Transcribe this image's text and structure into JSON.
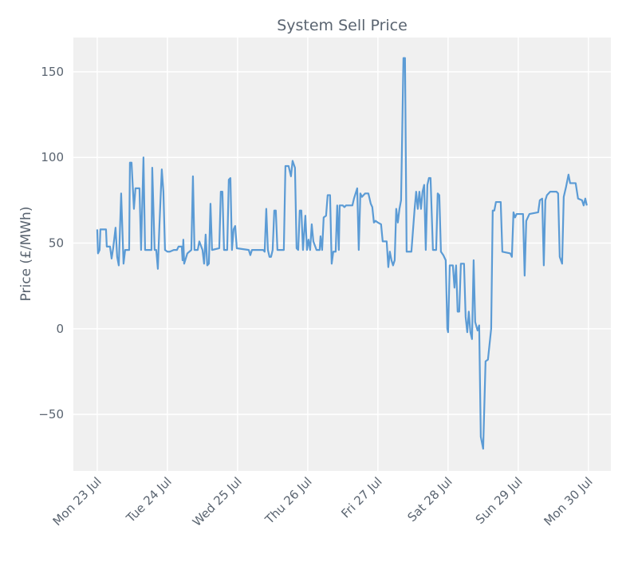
{
  "chart_data": {
    "type": "line",
    "title": "System Sell Price",
    "y_label": "Price (£/MWh)",
    "color": "#5b9bd5",
    "grid": true,
    "xlim": [
      -0.34,
      7.32
    ],
    "ylim": [
      -83,
      170
    ],
    "xticks": [
      {
        "value": 0,
        "label": "Mon 23 Jul"
      },
      {
        "value": 1,
        "label": "Tue 24 Jul"
      },
      {
        "value": 2,
        "label": "Wed 25 Jul"
      },
      {
        "value": 3,
        "label": "Thu 26 Jul"
      },
      {
        "value": 4,
        "label": "Fri 27 Jul"
      },
      {
        "value": 5,
        "label": "Sat 28 Jul"
      },
      {
        "value": 6,
        "label": "Sun 29 Jul"
      },
      {
        "value": 7,
        "label": "Mon 30 Jul"
      }
    ],
    "yticks": [
      {
        "value": -50,
        "label": "−50"
      },
      0,
      50,
      100,
      150
    ],
    "x": [
      0,
      0.011,
      0.034,
      0.045,
      0.125,
      0.136,
      0.182,
      0.205,
      0.227,
      0.261,
      0.284,
      0.307,
      0.341,
      0.375,
      0.398,
      0.455,
      0.466,
      0.489,
      0.523,
      0.545,
      0.602,
      0.625,
      0.659,
      0.682,
      0.773,
      0.784,
      0.818,
      0.841,
      0.864,
      0.886,
      0.92,
      0.943,
      0.966,
      1,
      1.034,
      1.091,
      1.136,
      1.159,
      1.205,
      1.216,
      1.227,
      1.239,
      1.284,
      1.341,
      1.364,
      1.386,
      1.432,
      1.455,
      1.5,
      1.523,
      1.545,
      1.568,
      1.591,
      1.614,
      1.636,
      1.739,
      1.761,
      1.784,
      1.807,
      1.852,
      1.875,
      1.898,
      1.92,
      1.943,
      1.966,
      1.989,
      2.159,
      2.182,
      2.205,
      2.364,
      2.386,
      2.409,
      2.432,
      2.455,
      2.477,
      2.5,
      2.523,
      2.545,
      2.568,
      2.659,
      2.682,
      2.727,
      2.761,
      2.784,
      2.818,
      2.841,
      2.864,
      2.886,
      2.909,
      2.932,
      2.966,
      2.989,
      3.011,
      3.034,
      3.057,
      3.08,
      3.125,
      3.17,
      3.182,
      3.205,
      3.227,
      3.261,
      3.284,
      3.318,
      3.341,
      3.364,
      3.398,
      3.42,
      3.443,
      3.455,
      3.5,
      3.523,
      3.545,
      3.614,
      3.636,
      3.659,
      3.705,
      3.727,
      3.75,
      3.773,
      3.795,
      3.818,
      3.864,
      3.898,
      3.92,
      3.943,
      3.966,
      4.0,
      4.045,
      4.068,
      4.125,
      4.148,
      4.17,
      4.193,
      4.216,
      4.239,
      4.261,
      4.284,
      4.307,
      4.33,
      4.364,
      4.386,
      4.409,
      4.477,
      4.523,
      4.545,
      4.568,
      4.591,
      4.614,
      4.636,
      4.659,
      4.682,
      4.705,
      4.727,
      4.75,
      4.784,
      4.83,
      4.852,
      4.875,
      4.898,
      4.932,
      4.966,
      4.989,
      5.0,
      5.023,
      5.068,
      5.091,
      5.114,
      5.136,
      5.159,
      5.182,
      5.227,
      5.25,
      5.273,
      5.295,
      5.318,
      5.341,
      5.364,
      5.386,
      5.42,
      5.443,
      5.466,
      5.5,
      5.534,
      5.568,
      5.614,
      5.636,
      5.659,
      5.682,
      5.75,
      5.773,
      5.886,
      5.909,
      5.932,
      5.955,
      5.977,
      6.068,
      6.091,
      6.114,
      6.159,
      6.284,
      6.307,
      6.341,
      6.364,
      6.386,
      6.409,
      6.455,
      6.545,
      6.568,
      6.591,
      6.625,
      6.648,
      6.682,
      6.716,
      6.739,
      6.818,
      6.852,
      6.909,
      6.932,
      6.955,
      6.977
    ],
    "values": [
      58,
      44,
      46,
      58,
      58,
      48,
      48,
      41,
      47,
      59,
      42,
      37,
      79,
      38,
      46,
      46,
      97,
      97,
      70,
      82,
      82,
      46,
      100,
      46,
      46,
      94,
      46,
      46,
      35,
      60,
      93,
      80,
      46,
      45,
      45,
      46,
      46,
      48,
      48,
      40,
      52,
      38,
      44,
      46,
      89,
      46,
      46,
      51,
      46,
      38,
      55,
      37,
      38,
      73,
      46,
      47,
      80,
      80,
      46,
      46,
      87,
      88,
      46,
      58,
      60,
      47,
      46,
      43,
      46,
      46,
      45,
      70,
      46,
      42,
      42,
      46,
      69,
      69,
      46,
      46,
      95,
      95,
      89,
      98,
      94,
      47,
      46,
      69,
      69,
      46,
      66,
      46,
      52,
      46,
      61,
      51,
      46,
      46,
      54,
      46,
      65,
      66,
      78,
      78,
      38,
      45,
      45,
      72,
      46,
      72,
      72,
      71,
      72,
      72,
      72,
      76,
      82,
      46,
      79,
      77,
      78,
      79,
      79,
      73,
      71,
      62,
      63,
      62,
      61,
      51,
      51,
      36,
      45,
      40,
      37,
      40,
      70,
      62,
      70,
      75,
      158,
      158,
      45,
      45,
      70,
      80,
      70,
      80,
      70,
      80,
      84,
      46,
      84,
      88,
      88,
      46,
      46,
      79,
      78,
      45,
      43,
      40,
      0,
      -2,
      37,
      37,
      24,
      37,
      10,
      10,
      38,
      38,
      7,
      -2,
      10,
      -2,
      -6,
      40,
      4,
      -1,
      2,
      -63,
      -70,
      -19,
      -18,
      0,
      69,
      69,
      74,
      74,
      45,
      44,
      42,
      68,
      65,
      67,
      67,
      31,
      63,
      67,
      68,
      75,
      76,
      37,
      75,
      78,
      80,
      80,
      79,
      42,
      38,
      77,
      83,
      90,
      85,
      85,
      76,
      75,
      72,
      76,
      72
    ]
  }
}
